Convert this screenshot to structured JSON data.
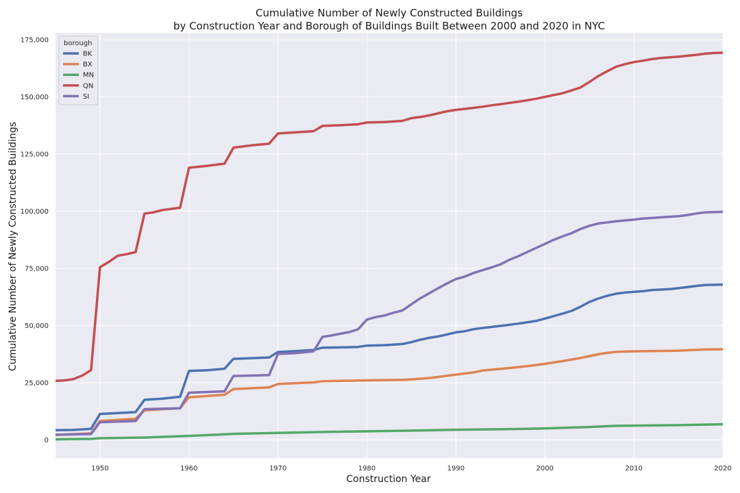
{
  "chart_data": {
    "type": "line",
    "title": "Cumulative Number of Newly Constructed Buildings",
    "subtitle": "by Construction Year and Borough of Buildings Built Between 2000 and 2020 in NYC",
    "xlabel": "Construction Year",
    "ylabel": "Cumulative Number of Newly Constructed Buildings",
    "xlim": [
      1945,
      2020
    ],
    "ylim": [
      -8000,
      178000
    ],
    "x_ticks": [
      1950,
      1960,
      1970,
      1980,
      1990,
      2000,
      2010,
      2020
    ],
    "x_tick_labels": [
      "1950",
      "1960",
      "1970",
      "1980",
      "1990",
      "2000",
      "2010",
      "2020"
    ],
    "y_ticks": [
      0,
      25000,
      50000,
      75000,
      100000,
      125000,
      150000,
      175000
    ],
    "y_tick_labels": [
      "0",
      "25,000",
      "50,000",
      "75,000",
      "100,000",
      "125,000",
      "150,000",
      "175,000"
    ],
    "grid": true,
    "background": "#eaeaf2",
    "legend": {
      "title": "borough",
      "placement": "top-left"
    },
    "series": [
      {
        "name": "BK",
        "color": "#4c72b0",
        "points": [
          [
            1945,
            4200
          ],
          [
            1947,
            4300
          ],
          [
            1949,
            4800
          ],
          [
            1950,
            11300
          ],
          [
            1954,
            12100
          ],
          [
            1955,
            17500
          ],
          [
            1957,
            18000
          ],
          [
            1959,
            18800
          ],
          [
            1960,
            30100
          ],
          [
            1962,
            30400
          ],
          [
            1964,
            31100
          ],
          [
            1965,
            35400
          ],
          [
            1967,
            35700
          ],
          [
            1969,
            36000
          ],
          [
            1970,
            38400
          ],
          [
            1972,
            38800
          ],
          [
            1974,
            39300
          ],
          [
            1975,
            40300
          ],
          [
            1977,
            40400
          ],
          [
            1979,
            40600
          ],
          [
            1980,
            41200
          ],
          [
            1982,
            41400
          ],
          [
            1984,
            41900
          ],
          [
            1985,
            42700
          ],
          [
            1986,
            43800
          ],
          [
            1987,
            44600
          ],
          [
            1988,
            45200
          ],
          [
            1990,
            47000
          ],
          [
            1991,
            47500
          ],
          [
            1992,
            48400
          ],
          [
            1993,
            48900
          ],
          [
            1995,
            49800
          ],
          [
            1997,
            50800
          ],
          [
            1999,
            52000
          ],
          [
            2000,
            53000
          ],
          [
            2002,
            55200
          ],
          [
            2003,
            56400
          ],
          [
            2004,
            58200
          ],
          [
            2005,
            60300
          ],
          [
            2006,
            61800
          ],
          [
            2007,
            63000
          ],
          [
            2008,
            63900
          ],
          [
            2009,
            64400
          ],
          [
            2011,
            65000
          ],
          [
            2012,
            65500
          ],
          [
            2014,
            65900
          ],
          [
            2015,
            66300
          ],
          [
            2017,
            67300
          ],
          [
            2018,
            67700
          ],
          [
            2020,
            67900
          ]
        ]
      },
      {
        "name": "BX",
        "color": "#dd8452",
        "points": [
          [
            1945,
            2100
          ],
          [
            1949,
            2800
          ],
          [
            1950,
            8200
          ],
          [
            1954,
            9200
          ],
          [
            1955,
            12900
          ],
          [
            1959,
            13800
          ],
          [
            1960,
            18600
          ],
          [
            1964,
            19700
          ],
          [
            1965,
            22200
          ],
          [
            1969,
            22900
          ],
          [
            1970,
            24400
          ],
          [
            1974,
            25100
          ],
          [
            1975,
            25600
          ],
          [
            1979,
            25900
          ],
          [
            1980,
            26000
          ],
          [
            1984,
            26200
          ],
          [
            1985,
            26400
          ],
          [
            1987,
            27000
          ],
          [
            1988,
            27500
          ],
          [
            1990,
            28500
          ],
          [
            1992,
            29500
          ],
          [
            1993,
            30300
          ],
          [
            1995,
            31000
          ],
          [
            1998,
            32200
          ],
          [
            2000,
            33200
          ],
          [
            2002,
            34400
          ],
          [
            2004,
            35800
          ],
          [
            2005,
            36600
          ],
          [
            2006,
            37400
          ],
          [
            2007,
            38000
          ],
          [
            2008,
            38500
          ],
          [
            2010,
            38700
          ],
          [
            2015,
            39000
          ],
          [
            2018,
            39500
          ],
          [
            2020,
            39600
          ]
        ]
      },
      {
        "name": "MN",
        "color": "#55a868",
        "points": [
          [
            1945,
            200
          ],
          [
            1949,
            400
          ],
          [
            1950,
            700
          ],
          [
            1955,
            1000
          ],
          [
            1960,
            1700
          ],
          [
            1963,
            2200
          ],
          [
            1965,
            2600
          ],
          [
            1970,
            3000
          ],
          [
            1975,
            3400
          ],
          [
            1980,
            3700
          ],
          [
            1985,
            4000
          ],
          [
            1990,
            4400
          ],
          [
            1995,
            4600
          ],
          [
            1998,
            4800
          ],
          [
            2000,
            5000
          ],
          [
            2005,
            5600
          ],
          [
            2008,
            6100
          ],
          [
            2010,
            6200
          ],
          [
            2015,
            6400
          ],
          [
            2020,
            6800
          ]
        ]
      },
      {
        "name": "QN",
        "color": "#c44e52",
        "points": [
          [
            1945,
            25800
          ],
          [
            1946,
            26000
          ],
          [
            1947,
            26500
          ],
          [
            1948,
            28100
          ],
          [
            1949,
            30500
          ],
          [
            1950,
            75500
          ],
          [
            1951,
            77800
          ],
          [
            1952,
            80500
          ],
          [
            1953,
            81200
          ],
          [
            1954,
            82100
          ],
          [
            1955,
            99000
          ],
          [
            1956,
            99500
          ],
          [
            1957,
            100500
          ],
          [
            1958,
            101000
          ],
          [
            1959,
            101500
          ],
          [
            1960,
            119000
          ],
          [
            1962,
            119800
          ],
          [
            1964,
            120800
          ],
          [
            1965,
            127800
          ],
          [
            1967,
            128800
          ],
          [
            1969,
            129500
          ],
          [
            1970,
            134000
          ],
          [
            1972,
            134500
          ],
          [
            1974,
            135000
          ],
          [
            1975,
            137300
          ],
          [
            1977,
            137600
          ],
          [
            1979,
            138000
          ],
          [
            1980,
            138800
          ],
          [
            1982,
            139000
          ],
          [
            1984,
            139500
          ],
          [
            1985,
            140700
          ],
          [
            1986,
            141200
          ],
          [
            1987,
            141900
          ],
          [
            1988,
            142800
          ],
          [
            1989,
            143700
          ],
          [
            1990,
            144300
          ],
          [
            1992,
            145200
          ],
          [
            1993,
            145700
          ],
          [
            1994,
            146300
          ],
          [
            1995,
            146800
          ],
          [
            1997,
            147900
          ],
          [
            1998,
            148500
          ],
          [
            1999,
            149200
          ],
          [
            2000,
            150000
          ],
          [
            2001,
            150800
          ],
          [
            2002,
            151600
          ],
          [
            2003,
            152800
          ],
          [
            2004,
            154100
          ],
          [
            2005,
            156500
          ],
          [
            2006,
            159100
          ],
          [
            2007,
            161200
          ],
          [
            2008,
            163200
          ],
          [
            2009,
            164300
          ],
          [
            2010,
            165200
          ],
          [
            2011,
            165800
          ],
          [
            2012,
            166500
          ],
          [
            2013,
            167000
          ],
          [
            2015,
            167600
          ],
          [
            2017,
            168400
          ],
          [
            2018,
            168900
          ],
          [
            2019,
            169200
          ],
          [
            2020,
            169300
          ]
        ]
      },
      {
        "name": "SI",
        "color": "#8172b3",
        "points": [
          [
            1945,
            2200
          ],
          [
            1949,
            2500
          ],
          [
            1950,
            7700
          ],
          [
            1954,
            8200
          ],
          [
            1955,
            13400
          ],
          [
            1959,
            13800
          ],
          [
            1960,
            20600
          ],
          [
            1964,
            21200
          ],
          [
            1965,
            27900
          ],
          [
            1969,
            28300
          ],
          [
            1970,
            37600
          ],
          [
            1972,
            37900
          ],
          [
            1974,
            38700
          ],
          [
            1975,
            45000
          ],
          [
            1976,
            45600
          ],
          [
            1977,
            46400
          ],
          [
            1978,
            47100
          ],
          [
            1979,
            48300
          ],
          [
            1980,
            52600
          ],
          [
            1981,
            53700
          ],
          [
            1982,
            54400
          ],
          [
            1983,
            55600
          ],
          [
            1984,
            56600
          ],
          [
            1985,
            59300
          ],
          [
            1986,
            61900
          ],
          [
            1987,
            64100
          ],
          [
            1988,
            66300
          ],
          [
            1989,
            68400
          ],
          [
            1990,
            70300
          ],
          [
            1991,
            71400
          ],
          [
            1992,
            73000
          ],
          [
            1993,
            74200
          ],
          [
            1994,
            75400
          ],
          [
            1995,
            76700
          ],
          [
            1996,
            78700
          ],
          [
            1997,
            80300
          ],
          [
            1998,
            82100
          ],
          [
            1999,
            83900
          ],
          [
            2000,
            85700
          ],
          [
            2001,
            87500
          ],
          [
            2002,
            89000
          ],
          [
            2003,
            90400
          ],
          [
            2004,
            92200
          ],
          [
            2005,
            93600
          ],
          [
            2006,
            94600
          ],
          [
            2007,
            95100
          ],
          [
            2008,
            95600
          ],
          [
            2010,
            96300
          ],
          [
            2011,
            96800
          ],
          [
            2012,
            97000
          ],
          [
            2013,
            97300
          ],
          [
            2015,
            97800
          ],
          [
            2016,
            98300
          ],
          [
            2017,
            99000
          ],
          [
            2018,
            99500
          ],
          [
            2020,
            99700
          ]
        ]
      }
    ]
  }
}
